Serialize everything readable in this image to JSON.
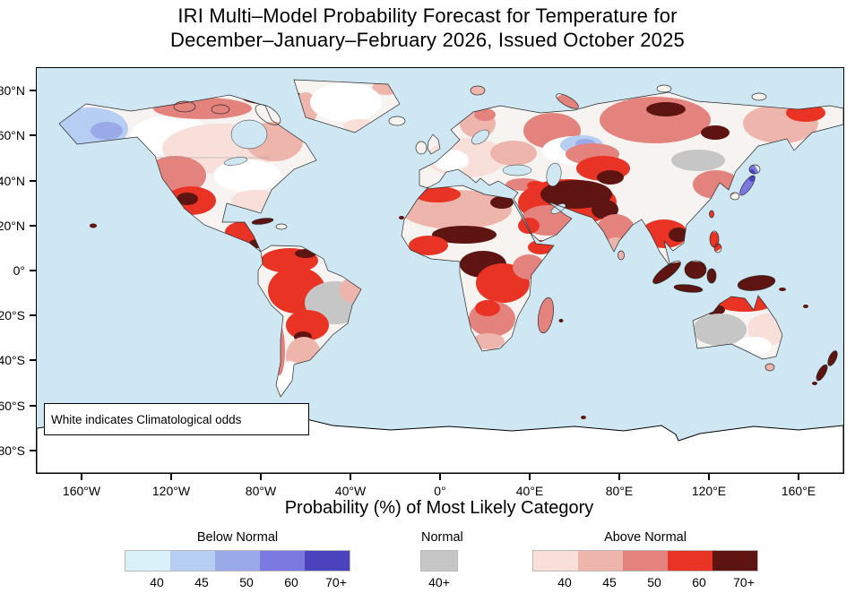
{
  "title": {
    "line1": "IRI Multi–Model Probability Forecast for Temperature for",
    "line2": "December–January–February 2026, Issued October 2025"
  },
  "map": {
    "note": "White indicates Climatological odds",
    "xlabel": "Probability (%) of Most Likely Category",
    "lat_ticks": [
      "80°N",
      "60°N",
      "40°N",
      "20°N",
      "0°",
      "20°S",
      "40°S",
      "60°S",
      "80°S"
    ],
    "lon_ticks": [
      "160°W",
      "120°W",
      "80°W",
      "40°W",
      "0°",
      "40°E",
      "80°E",
      "120°E",
      "160°E"
    ]
  },
  "legend": {
    "below": {
      "label": "Below Normal",
      "tick_labels": [
        "40",
        "45",
        "50",
        "60",
        "70+"
      ],
      "colors": [
        "#daf1f9",
        "#b6cef2",
        "#9aa9e8",
        "#7b78e0",
        "#4a43bd"
      ]
    },
    "normal": {
      "label": "Normal",
      "tick_labels": [
        "40+"
      ],
      "colors": [
        "#c6c6c6"
      ]
    },
    "above": {
      "label": "Above Normal",
      "tick_labels": [
        "40",
        "45",
        "50",
        "60",
        "70+"
      ],
      "colors": [
        "#f8dfda",
        "#eeb5ad",
        "#e4837d",
        "#e93425",
        "#5e1410"
      ]
    }
  },
  "colors": {
    "ocean": "#cfe7f2",
    "land": "#f6f3f0",
    "coast": "#2a2a2a",
    "norm": "#c6c6c6",
    "a40": "#f8dfda",
    "a45": "#eeb5ad",
    "a50": "#e4837d",
    "a60": "#e93425",
    "a70": "#5e1410",
    "b40": "#daf1f9",
    "b45": "#b6cef2",
    "b50": "#9aa9e8",
    "b60": "#7b78e0",
    "b70": "#4a43bd"
  },
  "chart_data": {
    "type": "heatmap",
    "title": "IRI Multi–Model Probability Forecast for Temperature for December–January–February 2026, Issued October 2025",
    "xlabel": "Probability (%) of Most Likely Category",
    "x_ticks": [
      "160°W",
      "120°W",
      "80°W",
      "40°W",
      "0°",
      "40°E",
      "80°E",
      "120°E",
      "160°E"
    ],
    "y_ticks": [
      "80°N",
      "60°N",
      "40°N",
      "20°N",
      "0°",
      "20°S",
      "40°S",
      "60°S",
      "80°S"
    ],
    "annotation": "White indicates Climatological odds",
    "legend_position": "bottom",
    "series": [
      {
        "name": "Below Normal",
        "bins": [
          "40",
          "45",
          "50",
          "60",
          "70+"
        ],
        "colors": [
          "#daf1f9",
          "#b6cef2",
          "#9aa9e8",
          "#7b78e0",
          "#4a43bd"
        ]
      },
      {
        "name": "Normal",
        "bins": [
          "40+"
        ],
        "colors": [
          "#c6c6c6"
        ]
      },
      {
        "name": "Above Normal",
        "bins": [
          "40",
          "45",
          "50",
          "60",
          "70+"
        ],
        "colors": [
          "#f8dfda",
          "#eeb5ad",
          "#e4837d",
          "#e93425",
          "#5e1410"
        ]
      }
    ]
  }
}
